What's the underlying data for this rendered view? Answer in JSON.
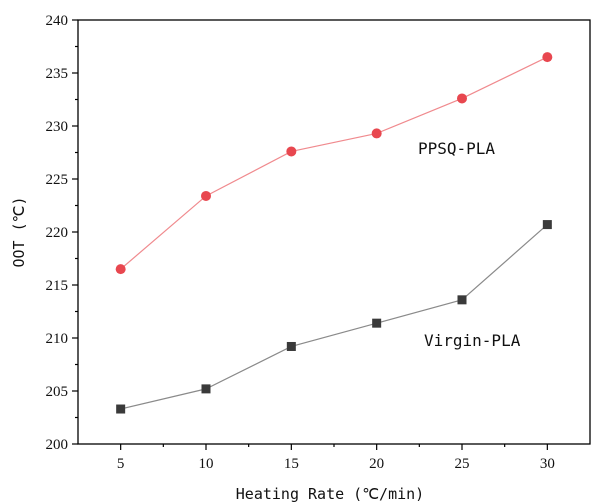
{
  "chart_data": {
    "type": "line",
    "title": "",
    "xlabel": "Heating Rate (℃/min)",
    "ylabel": "OOT (℃)",
    "x": [
      5,
      10,
      15,
      20,
      25,
      30
    ],
    "x_ticks": [
      "5",
      "10",
      "15",
      "20",
      "25",
      "30"
    ],
    "xlim": [
      2.5,
      32.5
    ],
    "ylim": [
      200,
      240
    ],
    "y_ticks": [
      "200",
      "205",
      "210",
      "215",
      "220",
      "225",
      "230",
      "235",
      "240"
    ],
    "grid": false,
    "legend": "none (series labeled inline)",
    "series": [
      {
        "name": "PPSQ-PLA",
        "values": [
          216.5,
          223.4,
          227.6,
          229.3,
          232.6,
          236.5
        ],
        "color": "#e8474f",
        "line_color": "#f08a8e",
        "marker": "circle"
      },
      {
        "name": "Virgin-PLA",
        "values": [
          203.3,
          205.2,
          209.2,
          211.4,
          213.6,
          220.7
        ],
        "color": "#3a3a3a",
        "line_color": "#8a8a8a",
        "marker": "square"
      }
    ]
  }
}
